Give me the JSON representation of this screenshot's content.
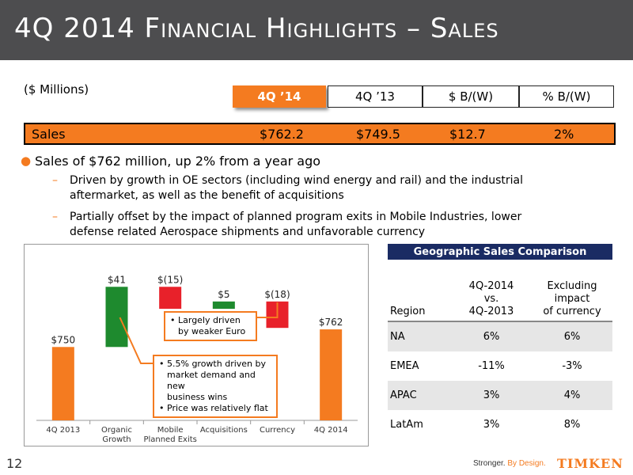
{
  "header": {
    "title": "4Q 2014 Financial Highlights – Sales"
  },
  "units": "($ Millions)",
  "columns": [
    "4Q ’14",
    "4Q ’13",
    "$ B/(W)",
    "% B/(W)"
  ],
  "sales_row": {
    "label": "Sales",
    "values": [
      "$762.2",
      "$749.5",
      "$12.7",
      "2%"
    ]
  },
  "bullets": {
    "main": "Sales of $762 million, up 2% from a year ago",
    "sub1_line1": "Driven by growth in OE sectors (including wind energy and rail) and the industrial",
    "sub1_line2": "aftermarket, as well as the benefit of acquisitions",
    "sub2_line1": "Partially offset by the impact of planned program exits in Mobile Industries, lower",
    "sub2_line2": "defense related Aerospace shipments and unfavorable currency"
  },
  "chart_data": {
    "type": "bar",
    "subtype": "waterfall",
    "categories": [
      "4Q 2013",
      "Organic Growth",
      "Mobile Planned Exits",
      "Acquisitions",
      "Currency",
      "4Q 2014"
    ],
    "category_lines": [
      [
        "4Q 2013"
      ],
      [
        "Organic",
        "Growth"
      ],
      [
        "Mobile",
        "Planned Exits"
      ],
      [
        "Acquisitions"
      ],
      [
        "Currency"
      ],
      [
        "4Q 2014"
      ]
    ],
    "values": [
      750,
      41,
      -15,
      5,
      -18,
      762
    ],
    "bar_kinds": [
      "total",
      "delta",
      "delta",
      "delta",
      "delta",
      "total"
    ],
    "data_labels": [
      "$750",
      "$41",
      "$(15)",
      "$5",
      "$(18)",
      "$762"
    ],
    "colors": {
      "total": "#f47b20",
      "increase": "#1e8a2e",
      "decrease": "#e8212a"
    },
    "callouts": {
      "currency": [
        "Largely driven",
        "by weaker Euro"
      ],
      "organic": [
        "5.5% growth driven by",
        "market demand and new",
        "business wins",
        "Price was relatively flat"
      ]
    },
    "legend": "none",
    "grid": false
  },
  "geo": {
    "title": "Geographic Sales Comparison",
    "headers": [
      [
        "Region"
      ],
      [
        "4Q-2014",
        "vs.",
        "4Q-2013"
      ],
      [
        "Excluding",
        "impact",
        "of currency"
      ]
    ],
    "rows": [
      [
        "NA",
        "6%",
        "6%"
      ],
      [
        "EMEA",
        "-11%",
        "-3%"
      ],
      [
        "APAC",
        "3%",
        "4%"
      ],
      [
        "LatAm",
        "3%",
        "8%"
      ]
    ]
  },
  "footer": {
    "page": "12",
    "tagline_a": "Stronger.",
    "tagline_b": " By Design.",
    "logo": "TIMKEN"
  },
  "colors": {
    "accent": "#f47b20",
    "header_bg": "#4d4d4f",
    "navy": "#1a2b63"
  }
}
